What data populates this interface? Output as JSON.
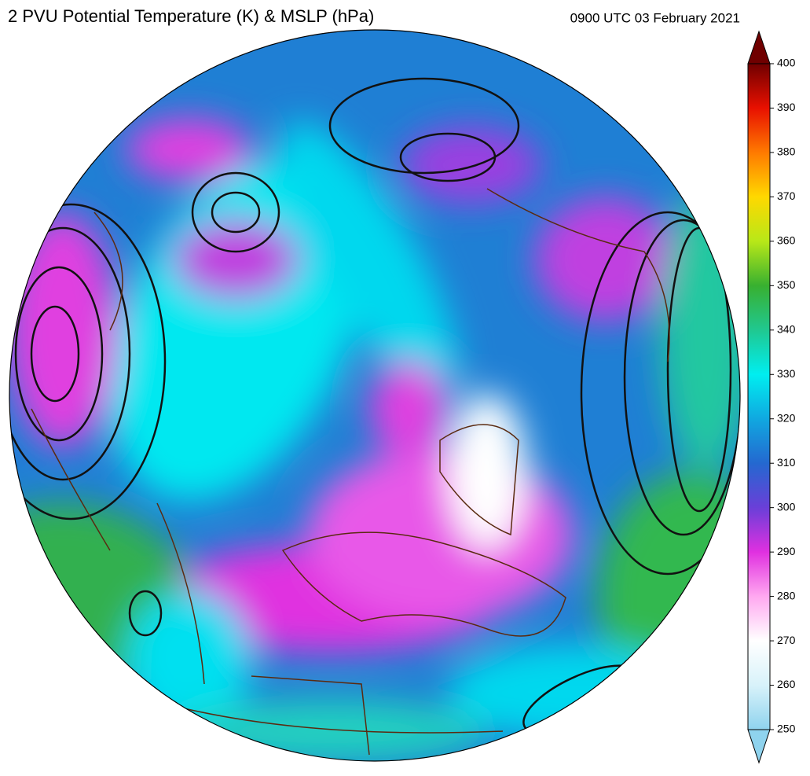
{
  "title": "2 PVU Potential Temperature (K) & MSLP (hPa)",
  "timestamp": "0900 UTC 03 February 2021",
  "colorbar": {
    "range": [
      250,
      400
    ],
    "ticks": [
      250,
      260,
      270,
      280,
      290,
      300,
      310,
      320,
      330,
      340,
      350,
      360,
      370,
      380,
      390,
      400
    ],
    "colors": [
      "#8fd3ee",
      "#d8f2fa",
      "#ffffff",
      "#ffa8f0",
      "#e030e0",
      "#6a3fd8",
      "#2468d0",
      "#10a8e0",
      "#00eef0",
      "#20c890",
      "#38b030",
      "#b8e818",
      "#ffd800",
      "#ff7a00",
      "#e81000",
      "#700000"
    ]
  }
}
